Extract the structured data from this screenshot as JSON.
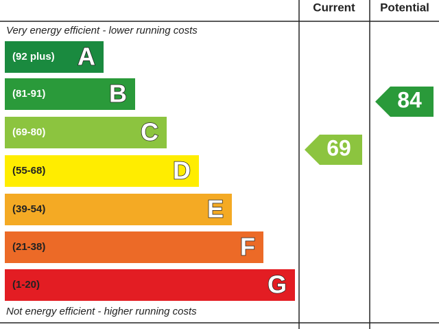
{
  "header": {
    "current": "Current",
    "potential": "Potential"
  },
  "top_note": "Very energy efficient - lower running costs",
  "bottom_note": "Not energy efficient - higher running costs",
  "bands": [
    {
      "range": "(92 plus)",
      "letter": "A"
    },
    {
      "range": "(81-91)",
      "letter": "B"
    },
    {
      "range": "(69-80)",
      "letter": "C"
    },
    {
      "range": "(55-68)",
      "letter": "D"
    },
    {
      "range": "(39-54)",
      "letter": "E"
    },
    {
      "range": "(21-38)",
      "letter": "F"
    },
    {
      "range": "(1-20)",
      "letter": "G"
    }
  ],
  "current": {
    "value": 69
  },
  "potential": {
    "value": 84
  }
}
